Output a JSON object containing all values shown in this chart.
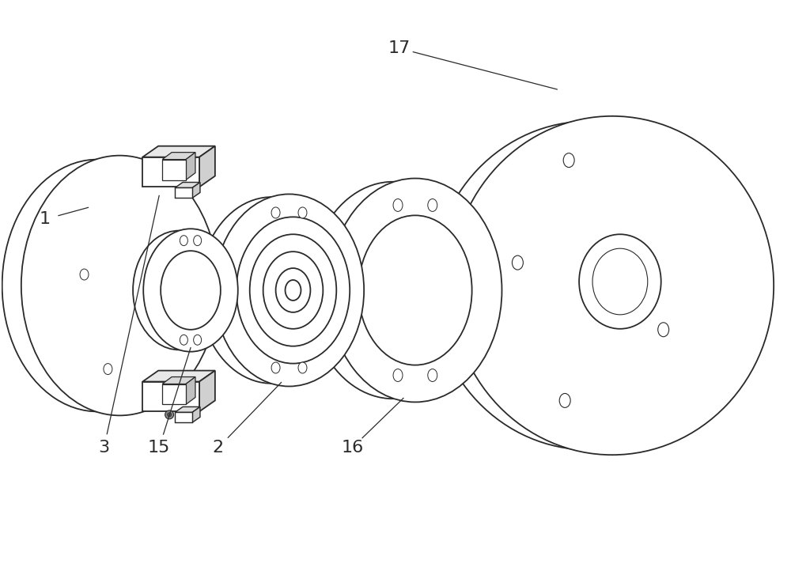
{
  "background_color": "#ffffff",
  "line_color": "#2a2a2a",
  "lw": 1.3,
  "fig_width": 10.0,
  "fig_height": 7.22,
  "label_fontsize": 16
}
